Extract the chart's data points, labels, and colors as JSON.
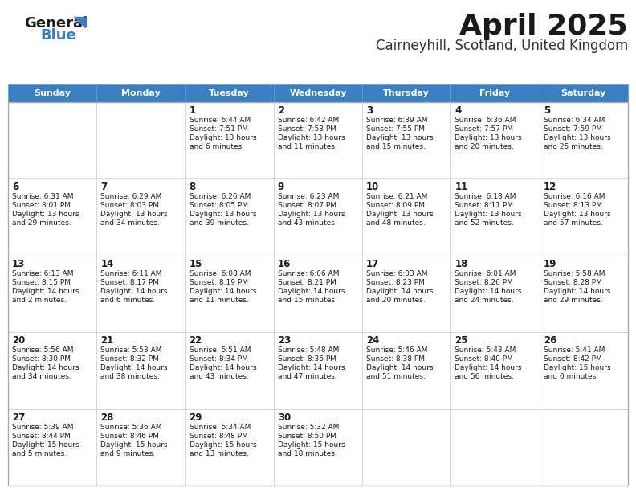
{
  "title": "April 2025",
  "subtitle": "Cairneyhill, Scotland, United Kingdom",
  "header_color": "#3a7fc1",
  "header_text_color": "#ffffff",
  "border_color": "#cccccc",
  "day_names": [
    "Sunday",
    "Monday",
    "Tuesday",
    "Wednesday",
    "Thursday",
    "Friday",
    "Saturday"
  ],
  "days": [
    {
      "day": 1,
      "col": 2,
      "row": 0,
      "sunrise": "6:44 AM",
      "sunset": "7:51 PM",
      "daylight": "13 hours and 6 minutes."
    },
    {
      "day": 2,
      "col": 3,
      "row": 0,
      "sunrise": "6:42 AM",
      "sunset": "7:53 PM",
      "daylight": "13 hours and 11 minutes."
    },
    {
      "day": 3,
      "col": 4,
      "row": 0,
      "sunrise": "6:39 AM",
      "sunset": "7:55 PM",
      "daylight": "13 hours and 15 minutes."
    },
    {
      "day": 4,
      "col": 5,
      "row": 0,
      "sunrise": "6:36 AM",
      "sunset": "7:57 PM",
      "daylight": "13 hours and 20 minutes."
    },
    {
      "day": 5,
      "col": 6,
      "row": 0,
      "sunrise": "6:34 AM",
      "sunset": "7:59 PM",
      "daylight": "13 hours and 25 minutes."
    },
    {
      "day": 6,
      "col": 0,
      "row": 1,
      "sunrise": "6:31 AM",
      "sunset": "8:01 PM",
      "daylight": "13 hours and 29 minutes."
    },
    {
      "day": 7,
      "col": 1,
      "row": 1,
      "sunrise": "6:29 AM",
      "sunset": "8:03 PM",
      "daylight": "13 hours and 34 minutes."
    },
    {
      "day": 8,
      "col": 2,
      "row": 1,
      "sunrise": "6:26 AM",
      "sunset": "8:05 PM",
      "daylight": "13 hours and 39 minutes."
    },
    {
      "day": 9,
      "col": 3,
      "row": 1,
      "sunrise": "6:23 AM",
      "sunset": "8:07 PM",
      "daylight": "13 hours and 43 minutes."
    },
    {
      "day": 10,
      "col": 4,
      "row": 1,
      "sunrise": "6:21 AM",
      "sunset": "8:09 PM",
      "daylight": "13 hours and 48 minutes."
    },
    {
      "day": 11,
      "col": 5,
      "row": 1,
      "sunrise": "6:18 AM",
      "sunset": "8:11 PM",
      "daylight": "13 hours and 52 minutes."
    },
    {
      "day": 12,
      "col": 6,
      "row": 1,
      "sunrise": "6:16 AM",
      "sunset": "8:13 PM",
      "daylight": "13 hours and 57 minutes."
    },
    {
      "day": 13,
      "col": 0,
      "row": 2,
      "sunrise": "6:13 AM",
      "sunset": "8:15 PM",
      "daylight": "14 hours and 2 minutes."
    },
    {
      "day": 14,
      "col": 1,
      "row": 2,
      "sunrise": "6:11 AM",
      "sunset": "8:17 PM",
      "daylight": "14 hours and 6 minutes."
    },
    {
      "day": 15,
      "col": 2,
      "row": 2,
      "sunrise": "6:08 AM",
      "sunset": "8:19 PM",
      "daylight": "14 hours and 11 minutes."
    },
    {
      "day": 16,
      "col": 3,
      "row": 2,
      "sunrise": "6:06 AM",
      "sunset": "8:21 PM",
      "daylight": "14 hours and 15 minutes."
    },
    {
      "day": 17,
      "col": 4,
      "row": 2,
      "sunrise": "6:03 AM",
      "sunset": "8:23 PM",
      "daylight": "14 hours and 20 minutes."
    },
    {
      "day": 18,
      "col": 5,
      "row": 2,
      "sunrise": "6:01 AM",
      "sunset": "8:26 PM",
      "daylight": "14 hours and 24 minutes."
    },
    {
      "day": 19,
      "col": 6,
      "row": 2,
      "sunrise": "5:58 AM",
      "sunset": "8:28 PM",
      "daylight": "14 hours and 29 minutes."
    },
    {
      "day": 20,
      "col": 0,
      "row": 3,
      "sunrise": "5:56 AM",
      "sunset": "8:30 PM",
      "daylight": "14 hours and 34 minutes."
    },
    {
      "day": 21,
      "col": 1,
      "row": 3,
      "sunrise": "5:53 AM",
      "sunset": "8:32 PM",
      "daylight": "14 hours and 38 minutes."
    },
    {
      "day": 22,
      "col": 2,
      "row": 3,
      "sunrise": "5:51 AM",
      "sunset": "8:34 PM",
      "daylight": "14 hours and 43 minutes."
    },
    {
      "day": 23,
      "col": 3,
      "row": 3,
      "sunrise": "5:48 AM",
      "sunset": "8:36 PM",
      "daylight": "14 hours and 47 minutes."
    },
    {
      "day": 24,
      "col": 4,
      "row": 3,
      "sunrise": "5:46 AM",
      "sunset": "8:38 PM",
      "daylight": "14 hours and 51 minutes."
    },
    {
      "day": 25,
      "col": 5,
      "row": 3,
      "sunrise": "5:43 AM",
      "sunset": "8:40 PM",
      "daylight": "14 hours and 56 minutes."
    },
    {
      "day": 26,
      "col": 6,
      "row": 3,
      "sunrise": "5:41 AM",
      "sunset": "8:42 PM",
      "daylight": "15 hours and 0 minutes."
    },
    {
      "day": 27,
      "col": 0,
      "row": 4,
      "sunrise": "5:39 AM",
      "sunset": "8:44 PM",
      "daylight": "15 hours and 5 minutes."
    },
    {
      "day": 28,
      "col": 1,
      "row": 4,
      "sunrise": "5:36 AM",
      "sunset": "8:46 PM",
      "daylight": "15 hours and 9 minutes."
    },
    {
      "day": 29,
      "col": 2,
      "row": 4,
      "sunrise": "5:34 AM",
      "sunset": "8:48 PM",
      "daylight": "15 hours and 13 minutes."
    },
    {
      "day": 30,
      "col": 3,
      "row": 4,
      "sunrise": "5:32 AM",
      "sunset": "8:50 PM",
      "daylight": "15 hours and 18 minutes."
    }
  ],
  "fig_width": 7.92,
  "fig_height": 6.12,
  "dpi": 100
}
